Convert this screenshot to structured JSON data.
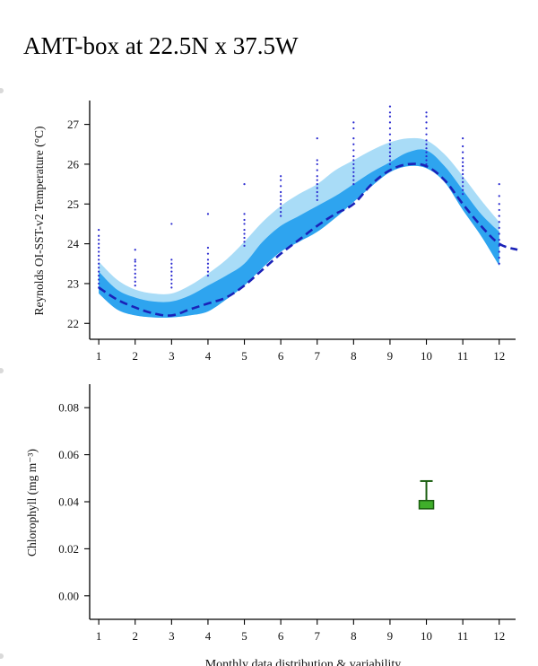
{
  "title": "AMT-box at 22.5N x 37.5W",
  "footer": "Monthly data distribution & variability",
  "colors": {
    "outer_band": "#a9dcf7",
    "inner_band": "#2ea4ef",
    "mean_line": "#1a22b8",
    "points": "#2a2ad0",
    "chl_box_fill": "#3fae2a",
    "chl_box_stroke": "#1b5e10"
  },
  "chart_data": [
    {
      "type": "area",
      "title": "",
      "xlabel": "",
      "ylabel": "Reynolds OI-SST-v2 Temperature (°C)",
      "xlim": [
        0.75,
        12.45
      ],
      "ylim": [
        21.6,
        27.6
      ],
      "x_ticks": [
        1,
        2,
        3,
        4,
        5,
        6,
        7,
        8,
        9,
        10,
        11,
        12
      ],
      "y_ticks": [
        22,
        23,
        24,
        25,
        26,
        27
      ],
      "grid": false,
      "series": [
        {
          "role": "outer-band",
          "x": [
            1,
            1.5,
            2,
            2.5,
            3,
            3.5,
            4,
            4.5,
            5,
            5.5,
            6,
            6.5,
            7,
            7.5,
            8,
            8.5,
            9,
            9.5,
            10,
            10.5,
            11,
            11.5,
            12
          ],
          "upper": [
            23.55,
            23.1,
            22.85,
            22.75,
            22.75,
            22.95,
            23.25,
            23.6,
            24.05,
            24.55,
            24.95,
            25.25,
            25.5,
            25.85,
            26.1,
            26.35,
            26.55,
            26.65,
            26.6,
            26.25,
            25.7,
            25.1,
            24.55
          ],
          "lower": [
            22.75,
            22.35,
            22.2,
            22.15,
            22.15,
            22.2,
            22.3,
            22.6,
            22.95,
            23.4,
            23.8,
            24.05,
            24.3,
            24.65,
            25.05,
            25.45,
            25.8,
            25.95,
            25.9,
            25.55,
            24.85,
            24.2,
            23.45
          ]
        },
        {
          "role": "inner-band",
          "x": [
            1,
            1.5,
            2,
            2.5,
            3,
            3.5,
            4,
            4.5,
            5,
            5.5,
            6,
            6.5,
            7,
            7.5,
            8,
            8.5,
            9,
            9.5,
            10,
            10.5,
            11,
            11.5,
            12
          ],
          "upper": [
            23.3,
            22.85,
            22.65,
            22.55,
            22.55,
            22.7,
            22.95,
            23.2,
            23.5,
            24.05,
            24.45,
            24.7,
            24.95,
            25.2,
            25.5,
            25.8,
            26.05,
            26.3,
            26.35,
            25.95,
            25.35,
            24.75,
            24.3
          ]
        },
        {
          "name": "",
          "role": "mean",
          "x": [
            1,
            1.5,
            2,
            2.5,
            3,
            3.5,
            4,
            4.5,
            5,
            5.5,
            6,
            6.5,
            7,
            7.5,
            8,
            8.5,
            9,
            9.5,
            10,
            10.5,
            11,
            11.5,
            12,
            12.5
          ],
          "values": [
            22.9,
            22.6,
            22.4,
            22.25,
            22.2,
            22.35,
            22.5,
            22.65,
            22.95,
            23.35,
            23.75,
            24.1,
            24.45,
            24.75,
            25.0,
            25.5,
            25.85,
            26.0,
            25.95,
            25.6,
            25.0,
            24.45,
            24.0,
            23.85
          ]
        }
      ],
      "points_by_month": [
        {
          "x": 1,
          "y": [
            22.9,
            23.0,
            23.1,
            23.2,
            23.3,
            23.4,
            23.5,
            23.6,
            23.7,
            23.8,
            23.9,
            24.0,
            24.1,
            24.2,
            24.35
          ]
        },
        {
          "x": 2,
          "y": [
            22.95,
            23.05,
            23.15,
            23.25,
            23.35,
            23.45,
            23.55,
            23.6,
            23.85
          ]
        },
        {
          "x": 3,
          "y": [
            22.9,
            23.0,
            23.1,
            23.2,
            23.3,
            23.4,
            23.5,
            23.6,
            24.5
          ]
        },
        {
          "x": 4,
          "y": [
            23.2,
            23.3,
            23.4,
            23.5,
            23.6,
            23.75,
            23.9,
            24.75
          ]
        },
        {
          "x": 5,
          "y": [
            23.95,
            24.05,
            24.15,
            24.25,
            24.35,
            24.5,
            24.6,
            24.75,
            25.5
          ]
        },
        {
          "x": 6,
          "y": [
            24.7,
            24.8,
            24.9,
            25.0,
            25.1,
            25.2,
            25.3,
            25.45,
            25.6,
            25.7
          ]
        },
        {
          "x": 7,
          "y": [
            25.1,
            25.2,
            25.3,
            25.4,
            25.5,
            25.6,
            25.7,
            25.85,
            26.0,
            26.1,
            26.65
          ]
        },
        {
          "x": 8,
          "y": [
            25.5,
            25.6,
            25.7,
            25.8,
            25.9,
            26.0,
            26.1,
            26.2,
            26.35,
            26.5,
            26.65,
            26.9,
            27.05
          ]
        },
        {
          "x": 9,
          "y": [
            26.0,
            26.1,
            26.2,
            26.3,
            26.4,
            26.5,
            26.6,
            26.75,
            26.9,
            27.05,
            27.2,
            27.3,
            27.45
          ]
        },
        {
          "x": 10,
          "y": [
            26.0,
            26.1,
            26.2,
            26.3,
            26.4,
            26.5,
            26.6,
            26.75,
            26.9,
            27.05,
            27.2,
            27.3
          ]
        },
        {
          "x": 11,
          "y": [
            25.25,
            25.35,
            25.45,
            25.55,
            25.65,
            25.75,
            25.85,
            25.95,
            26.05,
            26.15,
            26.3,
            26.45,
            26.65
          ]
        },
        {
          "x": 12,
          "y": [
            23.5,
            23.65,
            23.8,
            23.95,
            24.1,
            24.25,
            24.4,
            24.55,
            24.7,
            24.85,
            25.0,
            25.2,
            25.5
          ]
        }
      ]
    },
    {
      "type": "box",
      "title": "",
      "xlabel": "Monthly data distribution & variability",
      "ylabel": "Chlorophyll (mg m⁻³)",
      "xlim": [
        0.75,
        12.45
      ],
      "ylim": [
        -0.01,
        0.09
      ],
      "x_ticks": [
        1,
        2,
        3,
        4,
        5,
        6,
        7,
        8,
        9,
        10,
        11,
        12
      ],
      "y_ticks": [
        0.0,
        0.02,
        0.04,
        0.06,
        0.08
      ],
      "y_tick_labels": [
        "0.00",
        "0.02",
        "0.04",
        "0.06",
        "0.08"
      ],
      "grid": false,
      "boxes": [
        {
          "x": 10,
          "whisker_low": 0.037,
          "q1": 0.037,
          "median": 0.039,
          "q3": 0.0405,
          "whisker_high": 0.0488
        }
      ]
    }
  ]
}
